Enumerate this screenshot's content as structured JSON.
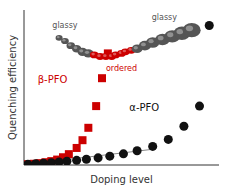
{
  "chart_data": {
    "type": "scatter",
    "xlabel": "Doping level",
    "ylabel": "Quenching efficiency",
    "xlim": [
      0,
      1.0
    ],
    "ylim": [
      0,
      1.0
    ],
    "xticks": [],
    "yticks": [],
    "tick_labels": false,
    "grid": false,
    "series": [
      {
        "type": "line",
        "color": "#888888",
        "x": [
          0.02,
          0.65
        ],
        "y": [
          0.005,
          0.1
        ]
      },
      {
        "name": "β-PFO",
        "type": "scatter",
        "marker": "square",
        "color": "#cc0000",
        "x": [
          0.02,
          0.05,
          0.08,
          0.11,
          0.14,
          0.17,
          0.2,
          0.23,
          0.27,
          0.3,
          0.33,
          0.37,
          0.4,
          0.43
        ],
        "y": [
          0.005,
          0.008,
          0.012,
          0.018,
          0.025,
          0.035,
          0.05,
          0.07,
          0.11,
          0.16,
          0.24,
          0.38,
          0.56,
          0.72
        ]
      },
      {
        "name": "α-PFO",
        "type": "scatter",
        "marker": "circle",
        "color": "#111111",
        "x": [
          0.02,
          0.06,
          0.1,
          0.14,
          0.18,
          0.22,
          0.27,
          0.32,
          0.38,
          0.44,
          0.51,
          0.58,
          0.66,
          0.74,
          0.82,
          0.9
        ],
        "y": [
          0.005,
          0.008,
          0.012,
          0.015,
          0.019,
          0.024,
          0.03,
          0.037,
          0.046,
          0.057,
          0.072,
          0.092,
          0.12,
          0.165,
          0.25,
          0.38
        ]
      },
      {
        "type": "scatter",
        "marker": "circle",
        "color": "#111111",
        "x": [
          0.95
        ],
        "y": [
          0.9
        ]
      },
      {
        "name": "glassy",
        "type": "bubble",
        "color": "#555555",
        "x": [
          0.18,
          0.21,
          0.24,
          0.27,
          0.3,
          0.33
        ],
        "y": [
          0.82,
          0.8,
          0.77,
          0.75,
          0.73,
          0.72
        ],
        "r": [
          0.018,
          0.02,
          0.022,
          0.024,
          0.026,
          0.027
        ]
      },
      {
        "name": "ordered",
        "type": "bubble",
        "color": "#cc0000",
        "x": [
          0.36,
          0.39,
          0.42,
          0.45,
          0.47,
          0.5,
          0.52,
          0.55
        ],
        "y": [
          0.71,
          0.7,
          0.7,
          0.7,
          0.71,
          0.72,
          0.73,
          0.74
        ],
        "r": [
          0.022,
          0.022,
          0.022,
          0.022,
          0.022,
          0.022,
          0.022,
          0.022
        ]
      },
      {
        "name": "glassy",
        "type": "bubble",
        "color": "#555555",
        "x": [
          0.58,
          0.62,
          0.66,
          0.71,
          0.76,
          0.81,
          0.86
        ],
        "y": [
          0.75,
          0.77,
          0.79,
          0.81,
          0.83,
          0.85,
          0.87
        ],
        "r": [
          0.028,
          0.031,
          0.034,
          0.037,
          0.04,
          0.043,
          0.046
        ]
      }
    ]
  }
}
